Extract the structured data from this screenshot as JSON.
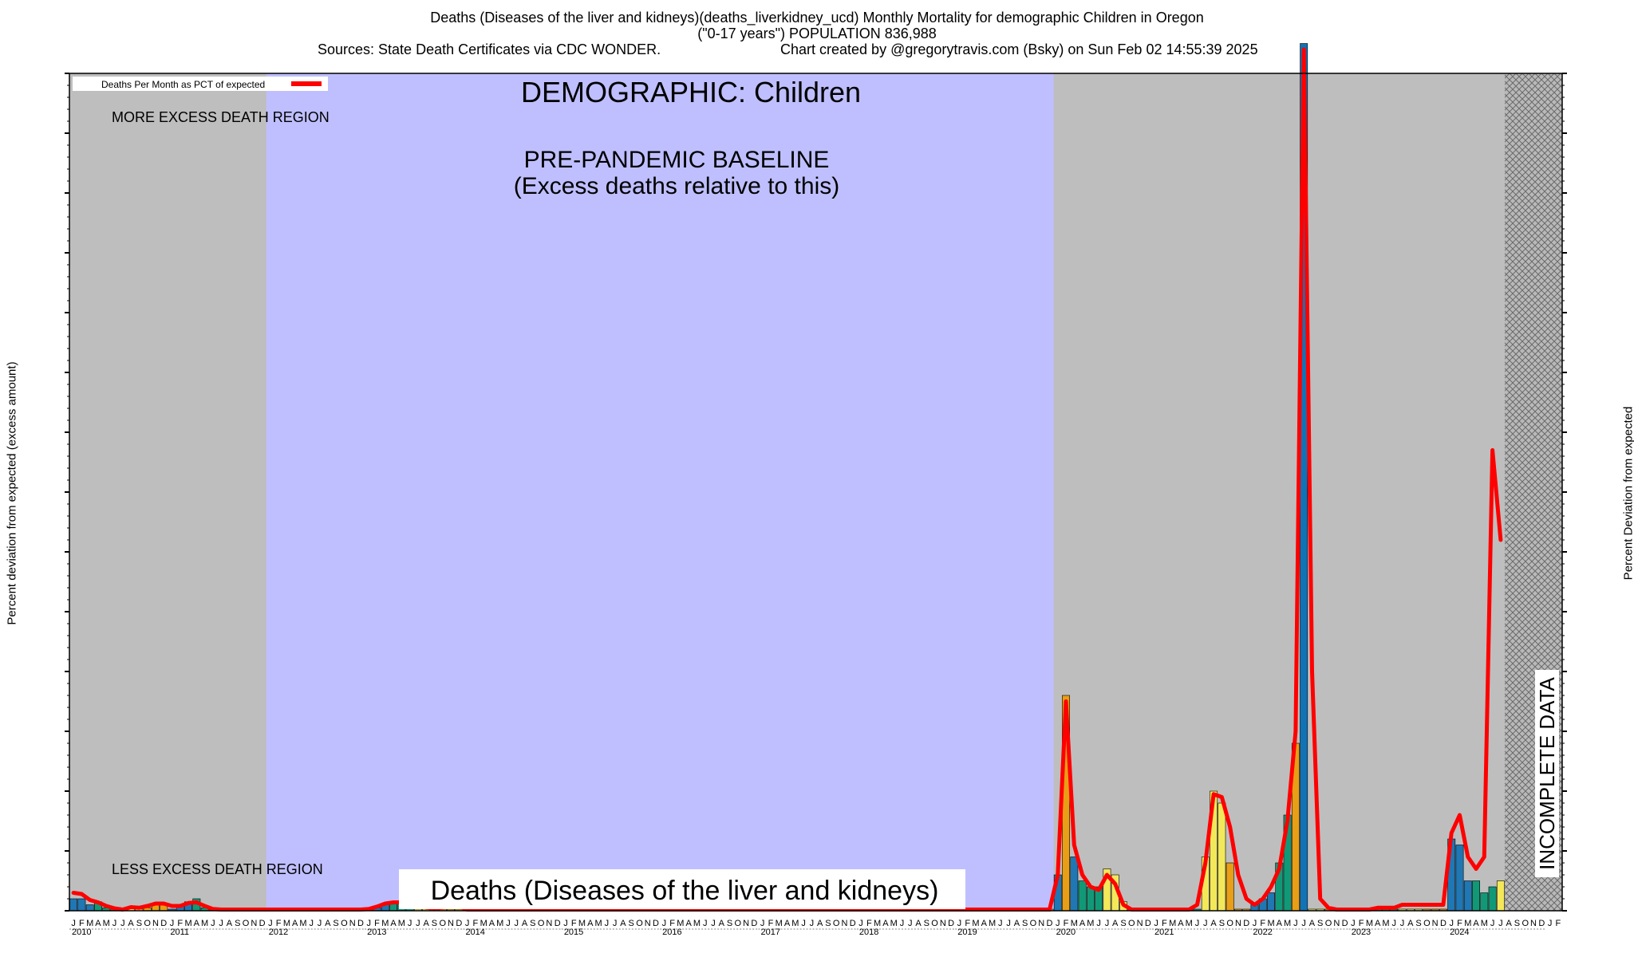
{
  "header": {
    "title_line1": "Deaths (Diseases of the liver and kidneys)(deaths_liverkidney_ucd) Monthly Mortality for demographic Children in Oregon",
    "title_line2": "(\"0-17 years\") POPULATION 836,988",
    "sources": "Sources: State Death Certificates via CDC WONDER.",
    "credit": "Chart created by @gregorytravis.com (Bsky) on Sun Feb 02 14:55:39 2025"
  },
  "chart_data": {
    "type": "bar",
    "title": "DEMOGRAPHIC: Children",
    "subtitle": "Deaths (Diseases of the liver and kidneys)",
    "ylabel_left": "Percent deviation from expected (excess amount)",
    "ylabel_right": "Percent Deviation from expected",
    "legend": {
      "label": "Deaths Per Month as PCT of expected",
      "placement": "top-left",
      "line_color": "#ff0000"
    },
    "regions": {
      "more_excess": "MORE EXCESS DEATH REGION",
      "less_excess": "LESS EXCESS DEATH REGION",
      "baseline_line1": "PRE-PANDEMIC BASELINE",
      "baseline_line2": "(Excess deaths relative to this)",
      "incomplete": "INCOMPLETE DATA",
      "baseline_start_month": 24,
      "baseline_end_month": 119,
      "incomplete_start_month": 175,
      "months_total": 182
    },
    "y_range": [
      -100,
      1300
    ],
    "month_letters": [
      "J",
      "F",
      "M",
      "A",
      "M",
      "J",
      "J",
      "A",
      "S",
      "O",
      "N",
      "D"
    ],
    "years": [
      "2010",
      "2011",
      "2012",
      "2013",
      "2014",
      "2015",
      "2016",
      "2017",
      "2018",
      "2019",
      "2020",
      "2021",
      "2022",
      "2023",
      "2024"
    ],
    "values": [
      -80,
      -80,
      -90,
      -85,
      -95,
      -95,
      -100,
      -95,
      -100,
      -95,
      -90,
      -90,
      -100,
      -90,
      -85,
      -80,
      -95,
      -100,
      -100,
      -100,
      -100,
      -100,
      -100,
      -100,
      -100,
      -100,
      -100,
      -100,
      -100,
      -100,
      -100,
      -100,
      -100,
      -100,
      -100,
      -100,
      -100,
      -95,
      -90,
      -85,
      -85,
      -90,
      -100,
      -100,
      -100,
      -100,
      -100,
      -100,
      -100,
      -100,
      -100,
      -100,
      -100,
      -100,
      -100,
      -100,
      -100,
      -100,
      -100,
      -100,
      -100,
      -100,
      -100,
      -100,
      -100,
      -100,
      -100,
      -100,
      -100,
      -100,
      -100,
      -100,
      -100,
      -100,
      -100,
      -100,
      -100,
      -100,
      -100,
      -100,
      -100,
      -100,
      -100,
      -100,
      -100,
      -100,
      -100,
      -100,
      -100,
      -100,
      -100,
      -100,
      -100,
      -100,
      -100,
      -100,
      -100,
      -100,
      -100,
      -100,
      -100,
      -100,
      -100,
      -100,
      -100,
      -100,
      -100,
      -100,
      -100,
      -100,
      -100,
      -100,
      -100,
      -100,
      -100,
      -100,
      -100,
      -100,
      -100,
      -100,
      -40,
      260,
      -10,
      -50,
      -60,
      -60,
      -30,
      -40,
      -85,
      -100,
      -100,
      -100,
      -100,
      -100,
      -100,
      -100,
      -100,
      -100,
      -10,
      100,
      80,
      -20,
      -100,
      -100,
      -90,
      -80,
      -70,
      -20,
      60,
      180,
      1350,
      -100,
      -100,
      -100,
      -100,
      -100,
      -100,
      -100,
      -100,
      -100,
      -100,
      -100,
      -100,
      -100,
      -100,
      -100,
      -100,
      -100,
      20,
      10,
      -50,
      -50,
      -70,
      -60,
      -50
    ],
    "trend": [
      -70,
      -72,
      -82,
      -86,
      -92,
      -96,
      -98,
      -94,
      -95,
      -92,
      -88,
      -88,
      -92,
      -92,
      -87,
      -86,
      -92,
      -97,
      -98,
      -98,
      -98,
      -98,
      -98,
      -98,
      -98,
      -98,
      -98,
      -98,
      -98,
      -98,
      -98,
      -98,
      -98,
      -98,
      -98,
      -98,
      -97,
      -93,
      -88,
      -86,
      -86,
      -88,
      -90,
      -95,
      -96,
      -95,
      -93,
      -93,
      -98,
      -98,
      -98,
      -98,
      -98,
      -98,
      -98,
      -98,
      -98,
      -98,
      -98,
      -98,
      -98,
      -98,
      -98,
      -98,
      -98,
      -98,
      -98,
      -98,
      -98,
      -98,
      -98,
      -98,
      -98,
      -98,
      -98,
      -98,
      -98,
      -98,
      -98,
      -98,
      -98,
      -98,
      -98,
      -98,
      -98,
      -98,
      -98,
      -98,
      -98,
      -98,
      -98,
      -98,
      -98,
      -98,
      -98,
      -98,
      -98,
      -98,
      -98,
      -98,
      -98,
      -98,
      -98,
      -98,
      -98,
      -98,
      -98,
      -98,
      -98,
      -98,
      -98,
      -98,
      -98,
      -98,
      -98,
      -98,
      -98,
      -98,
      -98,
      -98,
      -40,
      250,
      10,
      -40,
      -60,
      -65,
      -40,
      -55,
      -90,
      -98,
      -98,
      -98,
      -98,
      -98,
      -98,
      -98,
      -98,
      -90,
      -20,
      95,
      90,
      40,
      -40,
      -80,
      -90,
      -80,
      -60,
      -30,
      50,
      200,
      1340,
      300,
      -80,
      -95,
      -98,
      -98,
      -98,
      -98,
      -98,
      -95,
      -95,
      -95,
      -90,
      -90,
      -90,
      -90,
      -90,
      -90,
      30,
      60,
      -10,
      -30,
      -10,
      670,
      520
    ]
  }
}
